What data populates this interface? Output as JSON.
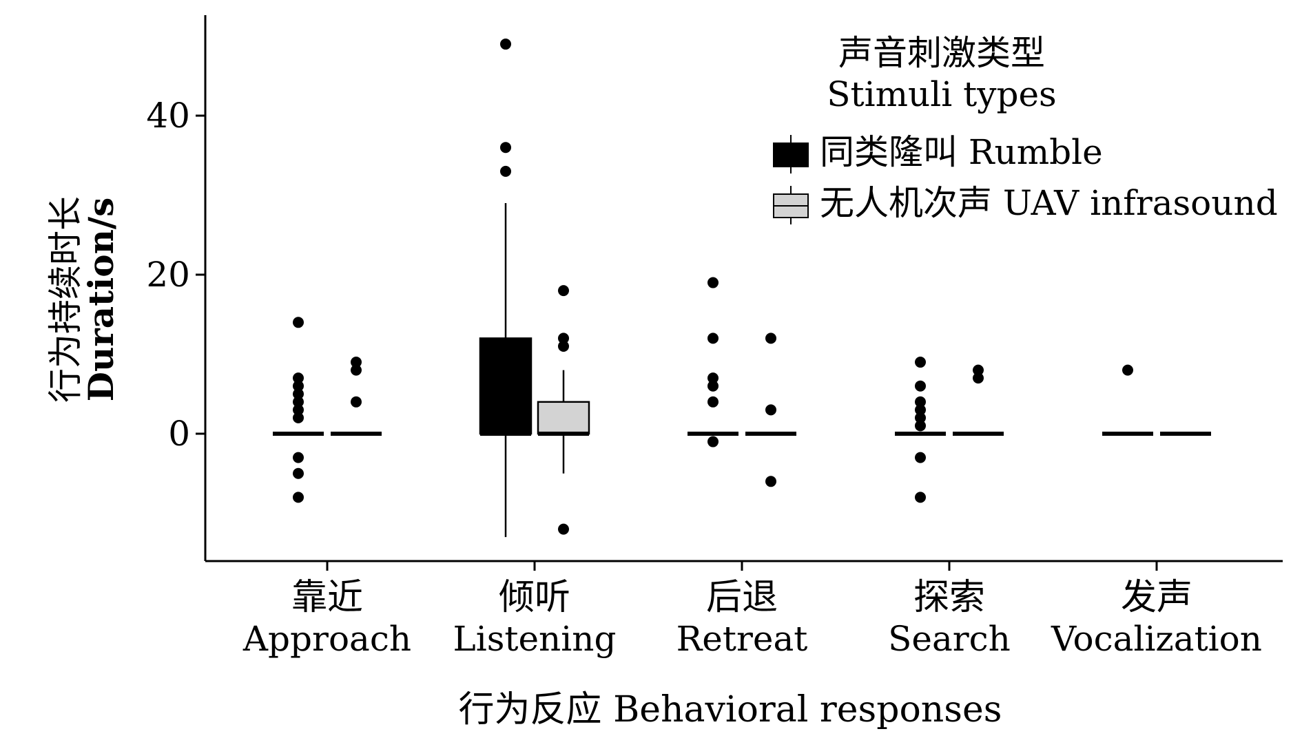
{
  "chart_data": {
    "type": "box",
    "xlabel": "行为反应 Behavioral responses",
    "ylabel_zh": "行为持续时长",
    "ylabel_en": "Duration/s",
    "ylim": [
      -16,
      52
    ],
    "yticks": [
      0,
      20,
      40
    ],
    "grid": false,
    "legend_position": "top-right",
    "legend": {
      "title_zh": "声音刺激类型",
      "title_en": "Stimuli types"
    },
    "categories": [
      {
        "zh": "靠近",
        "en": "Approach"
      },
      {
        "zh": "倾听",
        "en": "Listening"
      },
      {
        "zh": "后退",
        "en": "Retreat"
      },
      {
        "zh": "探索",
        "en": "Search"
      },
      {
        "zh": "发声",
        "en": "Vocalization"
      }
    ],
    "series": [
      {
        "name": "同类隆叫 Rumble",
        "color": "#000000",
        "boxes": [
          {
            "q1": 0,
            "median": 0,
            "q3": 0,
            "whisker_low": 0,
            "whisker_high": 0,
            "outliers": [
              14,
              7,
              6,
              5,
              4,
              3,
              2,
              -3,
              -5,
              -8
            ]
          },
          {
            "q1": 0,
            "median": 0,
            "q3": 12,
            "whisker_low": -13,
            "whisker_high": 29,
            "outliers": [
              49,
              36,
              33
            ]
          },
          {
            "q1": 0,
            "median": 0,
            "q3": 0,
            "whisker_low": 0,
            "whisker_high": 0,
            "outliers": [
              19,
              12,
              7,
              6,
              4,
              -1
            ]
          },
          {
            "q1": 0,
            "median": 0,
            "q3": 0,
            "whisker_low": 0,
            "whisker_high": 0,
            "outliers": [
              9,
              6,
              4,
              3,
              2,
              1,
              -3,
              -8
            ]
          },
          {
            "q1": 0,
            "median": 0,
            "q3": 0,
            "whisker_low": 0,
            "whisker_high": 0,
            "outliers": [
              8
            ]
          }
        ]
      },
      {
        "name": "无人机次声 UAV infrasound",
        "color": "#d3d3d3",
        "boxes": [
          {
            "q1": 0,
            "median": 0,
            "q3": 0,
            "whisker_low": 0,
            "whisker_high": 0,
            "outliers": [
              9,
              8,
              4
            ]
          },
          {
            "q1": 0,
            "median": 0,
            "q3": 4,
            "whisker_low": -5,
            "whisker_high": 8,
            "outliers": [
              18,
              12,
              11,
              -12
            ]
          },
          {
            "q1": 0,
            "median": 0,
            "q3": 0,
            "whisker_low": 0,
            "whisker_high": 0,
            "outliers": [
              12,
              3,
              -6
            ]
          },
          {
            "q1": 0,
            "median": 0,
            "q3": 0,
            "whisker_low": 0,
            "whisker_high": 0,
            "outliers": [
              8,
              7
            ]
          },
          {
            "q1": 0,
            "median": 0,
            "q3": 0,
            "whisker_low": 0,
            "whisker_high": 0,
            "outliers": []
          }
        ]
      }
    ]
  }
}
